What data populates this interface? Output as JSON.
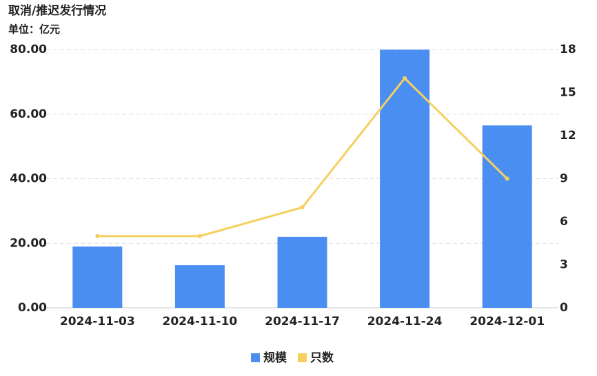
{
  "chart_data": {
    "type": "bar-line",
    "title": "取消/推迟发行情况",
    "subtitle": "单位：亿元",
    "categories": [
      "2024-11-03",
      "2024-11-10",
      "2024-11-17",
      "2024-11-24",
      "2024-12-01"
    ],
    "series": [
      {
        "name": "规模",
        "color": "#4a8ef2",
        "type": "bar",
        "values": [
          19.0,
          13.2,
          22.0,
          80.0,
          56.5
        ]
      },
      {
        "name": "只数",
        "color": "#f5d05e",
        "type": "line",
        "axis": "y2",
        "values": [
          5,
          5,
          7,
          16,
          9
        ]
      }
    ],
    "ylim": [
      0,
      80
    ],
    "yticks": [
      {
        "value": 0,
        "label": "0.00"
      },
      {
        "value": 20,
        "label": "20.00"
      },
      {
        "value": 40,
        "label": "40.00"
      },
      {
        "value": 60,
        "label": "60.00"
      },
      {
        "value": 80,
        "label": "80.00"
      }
    ],
    "y2lim": [
      0,
      18
    ],
    "y2ticks": [
      0,
      3,
      6,
      9,
      12,
      15,
      18
    ],
    "grid": true,
    "legend": "bottom"
  }
}
